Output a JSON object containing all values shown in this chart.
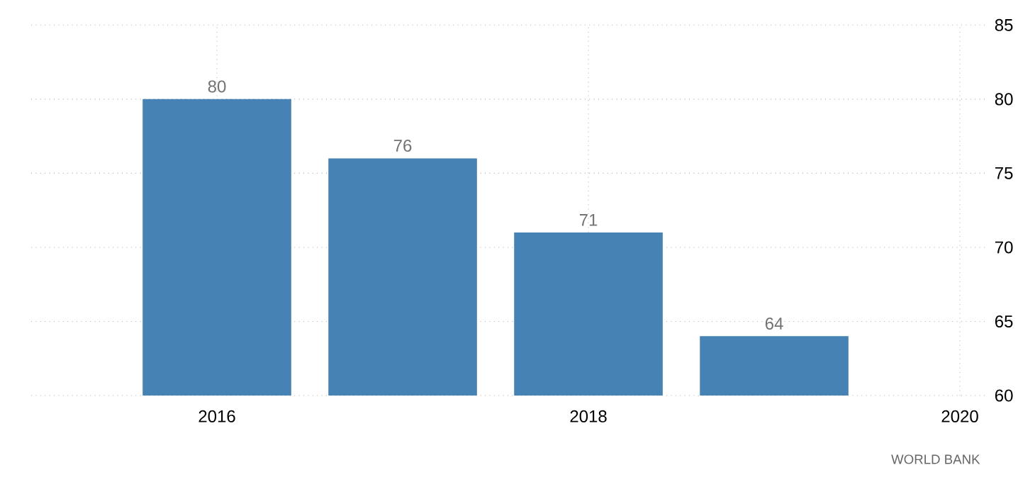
{
  "chart_data": {
    "type": "bar",
    "x": [
      2016,
      2017,
      2018,
      2019
    ],
    "values": [
      80,
      76,
      71,
      64
    ],
    "color": "#4682b4",
    "xlim": [
      2015,
      2020.15
    ],
    "xticks": [
      2016,
      2018,
      2020
    ],
    "ylim": [
      60,
      85
    ],
    "yticks": [
      60,
      65,
      70,
      75,
      80,
      85
    ],
    "grid": true,
    "data_labels": true,
    "annotations": [
      "WORLD BANK"
    ]
  }
}
